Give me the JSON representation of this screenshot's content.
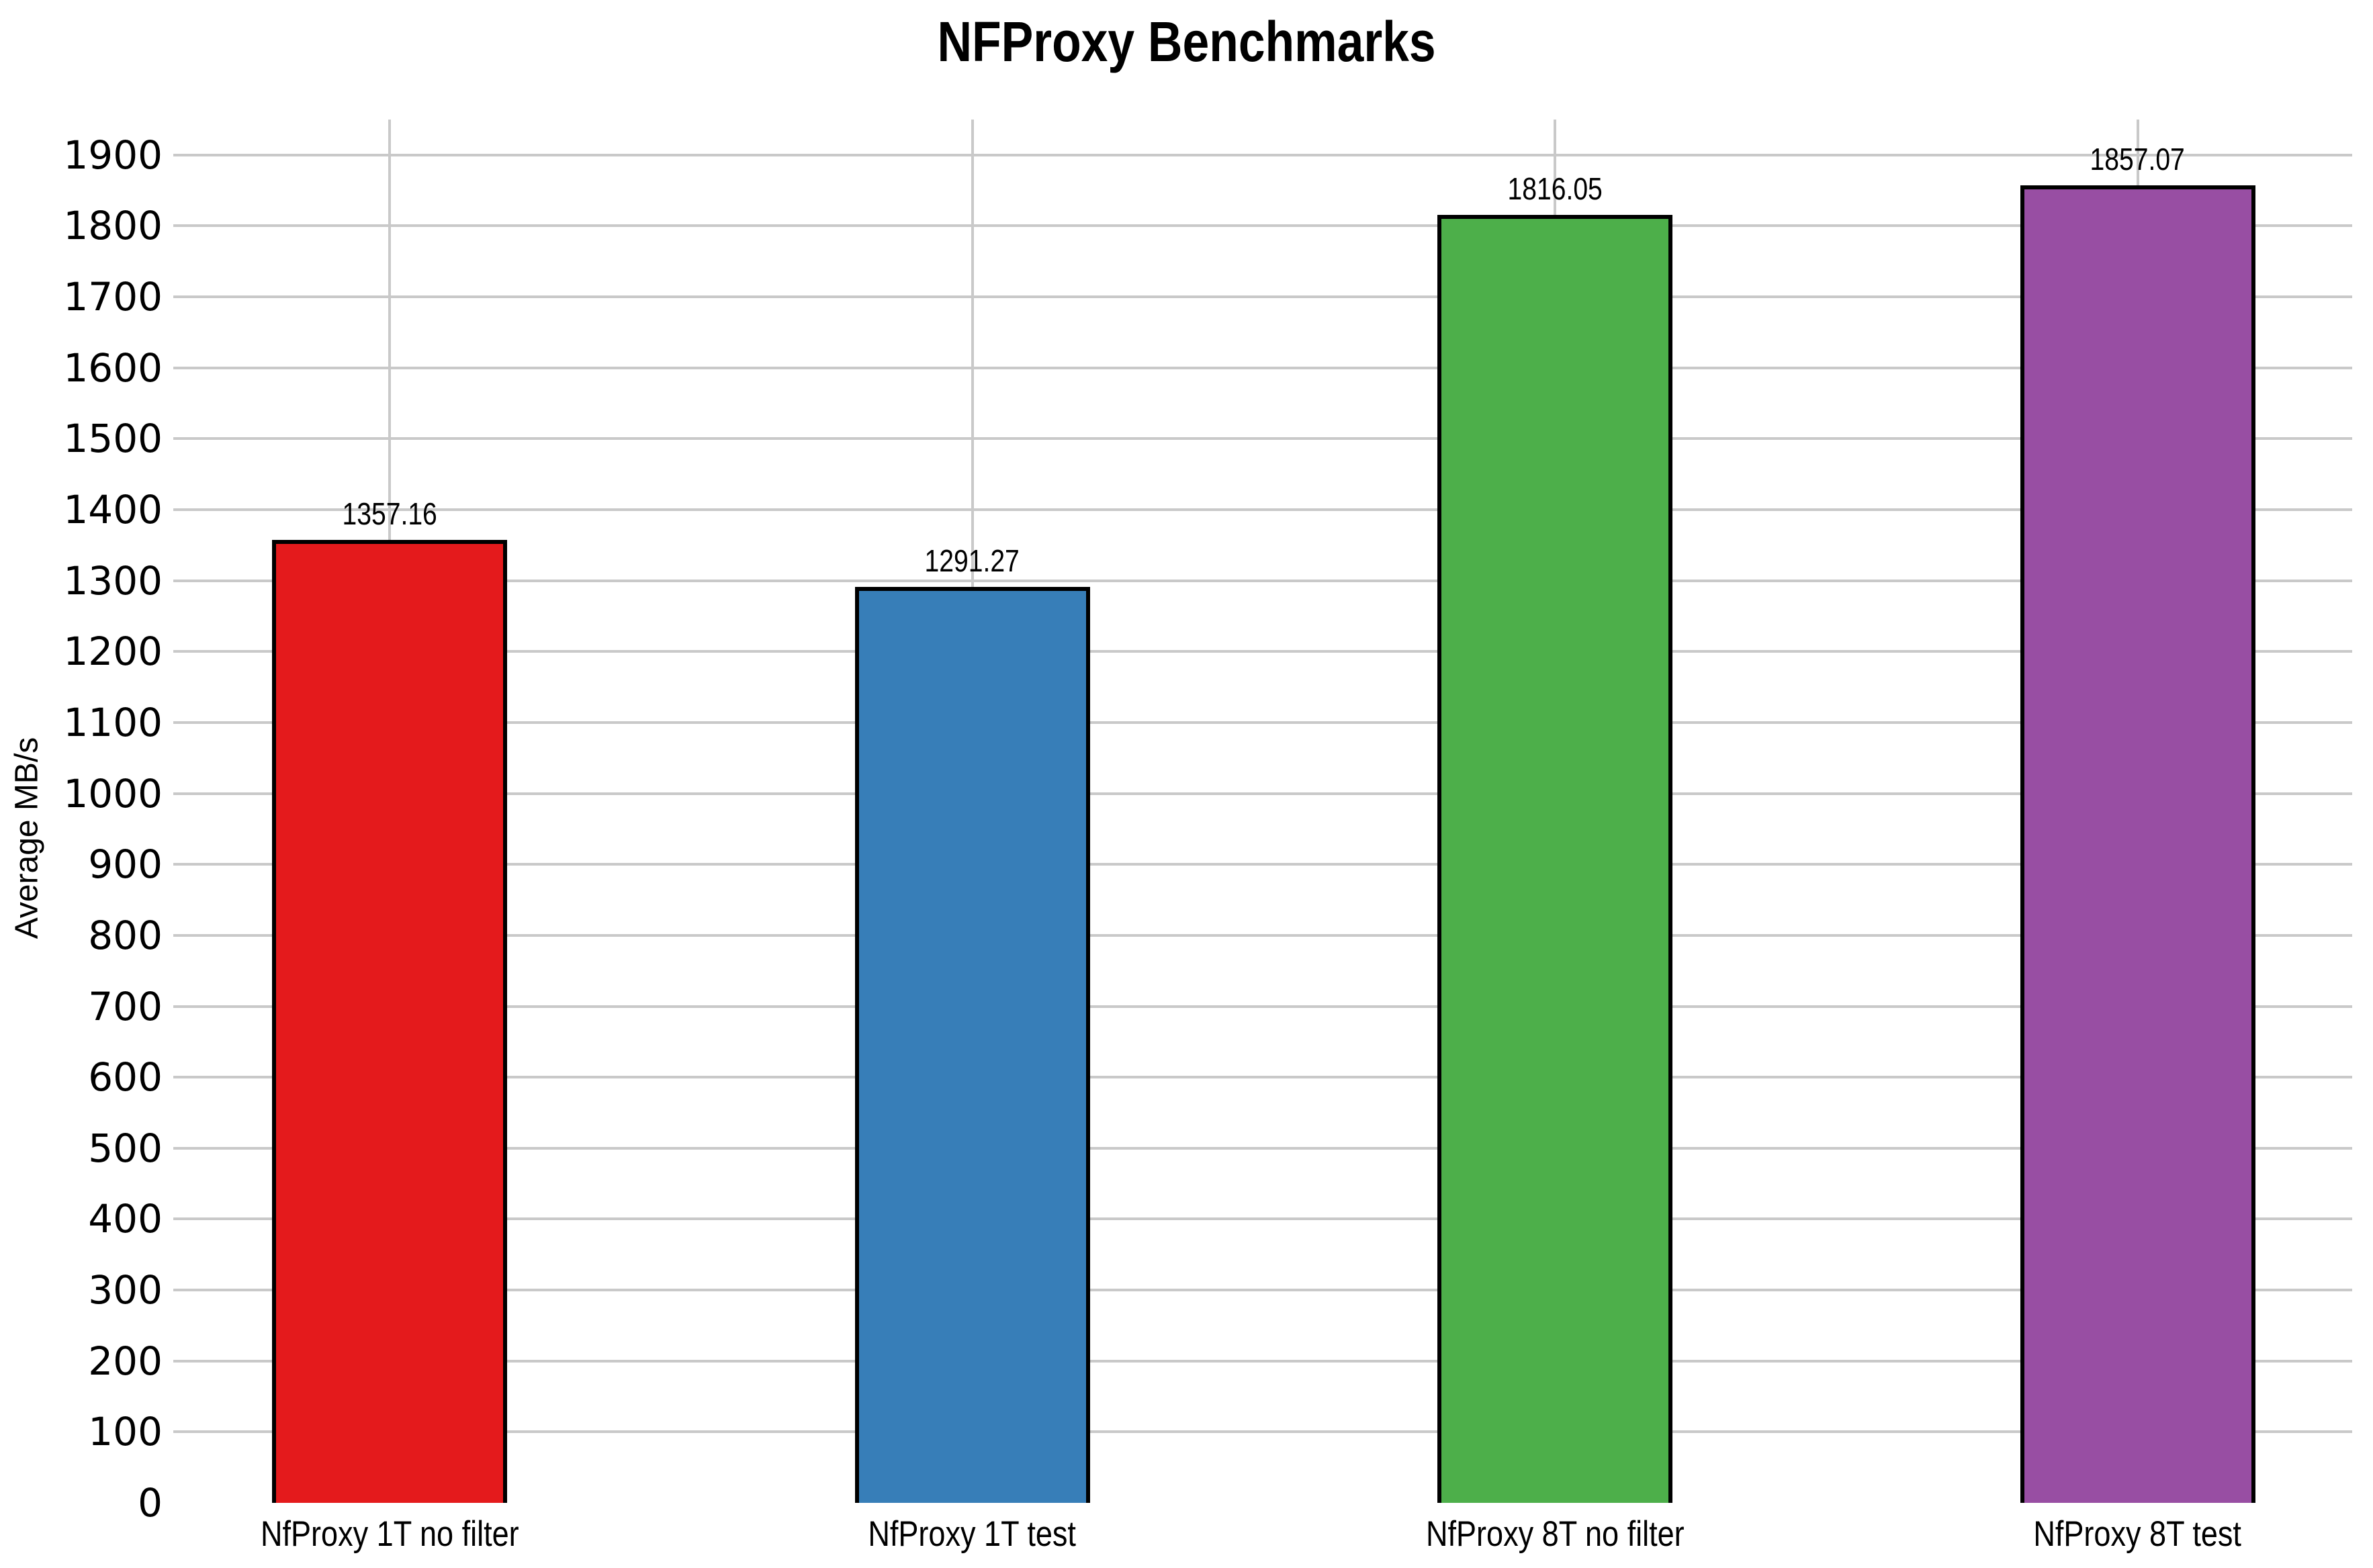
{
  "chart_data": {
    "type": "bar",
    "title": "NFProxy Benchmarks",
    "ylabel": "Average MB/s",
    "xlabel": "",
    "categories": [
      "NfProxy 1T no filter",
      "NfProxy 1T test",
      "NfProxy 8T no filter",
      "NfProxy 8T test"
    ],
    "values": [
      1357.16,
      1291.27,
      1816.05,
      1857.07
    ],
    "value_labels": [
      "1357.16",
      "1291.27",
      "1816.05",
      "1857.07"
    ],
    "bar_colors": [
      "#e41a1c",
      "#377eb8",
      "#4daf4a",
      "#984ea3"
    ],
    "bar_edge_color": "#000000",
    "grid": "on",
    "grid_color": "#c9c9c9",
    "legend_position": "none",
    "ylim": [
      0,
      1950
    ],
    "yticks": [
      0,
      100,
      200,
      300,
      400,
      500,
      600,
      700,
      800,
      900,
      1000,
      1100,
      1200,
      1300,
      1400,
      1500,
      1600,
      1700,
      1800,
      1900
    ]
  }
}
